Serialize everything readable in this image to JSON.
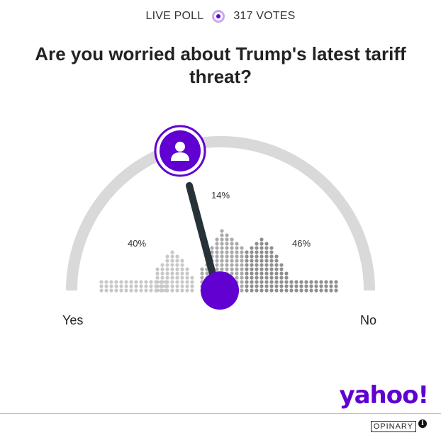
{
  "header": {
    "live_label": "LIVE POLL",
    "votes_label": "317 VOTES"
  },
  "question": "Are you worried about Trump's latest tariff threat?",
  "options": [
    {
      "label": "Yes",
      "percent_label": "40%",
      "percent": 40,
      "color": "#c8c8c8"
    },
    {
      "label": "",
      "percent_label": "14%",
      "percent": 14,
      "color": "#aaaaaa"
    },
    {
      "label": "No",
      "percent_label": "46%",
      "percent": 46,
      "color": "#8f8f8f"
    }
  ],
  "gauge": {
    "needle_color": "#263238",
    "accent": "#6001d2",
    "track_color": "#d9d9d9"
  },
  "brand": {
    "logo_text": "yahoo!",
    "footer_text": "OPINARY",
    "info_icon": "i"
  },
  "icons": {
    "user": "user-icon",
    "info": "info-icon"
  }
}
